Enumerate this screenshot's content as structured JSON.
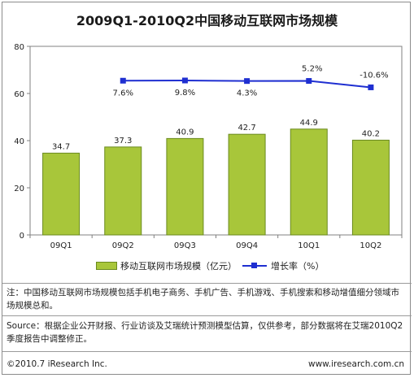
{
  "title": "2009Q1-2010Q2中国移动互联网市场规模",
  "chart_data": {
    "type": "bar",
    "categories": [
      "09Q1",
      "09Q2",
      "09Q3",
      "09Q4",
      "10Q1",
      "10Q2"
    ],
    "series": [
      {
        "name": "移动互联网市场规模（亿元）",
        "kind": "bar",
        "values": [
          34.7,
          37.3,
          40.9,
          42.7,
          44.9,
          40.2
        ],
        "color": "#a8c63a"
      },
      {
        "name": "增长率（%）",
        "kind": "line",
        "values": [
          null,
          7.6,
          9.8,
          4.3,
          5.2,
          -10.6
        ],
        "labels": [
          "",
          "7.6%",
          "9.8%",
          "4.3%",
          "5.2%",
          "-10.6%"
        ],
        "color": "#1f2fd1"
      }
    ],
    "y_ticks": [
      "0",
      "20",
      "40",
      "60",
      "80"
    ],
    "ylim": [
      0,
      80
    ],
    "grid": false,
    "legend": "bottom"
  },
  "notes": {
    "note": "注：中国移动互联网市场规模包括手机电子商务、手机广告、手机游戏、手机搜索和移动增值细分领域市场规模总和。",
    "source": "Source：根据企业公开财报、行业访谈及艾瑞统计预测模型估算，仅供参考，部分数据将在艾瑞2010Q2季度报告中调整修正。"
  },
  "footer": {
    "copyright": "©2010.7 iResearch Inc.",
    "url": "www.iresearch.com.cn"
  }
}
